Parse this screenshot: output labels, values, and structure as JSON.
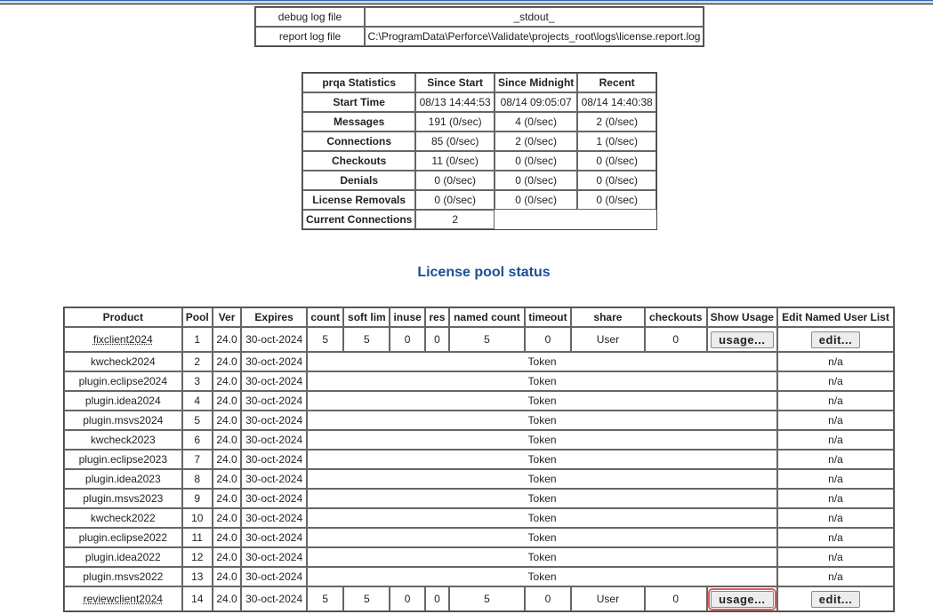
{
  "logs": [
    {
      "label": "debug log file",
      "value": "_stdout_"
    },
    {
      "label": "report log file",
      "value": "C:\\ProgramData\\Perforce\\Validate\\projects_root\\logs\\license.report.log"
    }
  ],
  "stats": {
    "headers": [
      "prqa Statistics",
      "Since Start",
      "Since Midnight",
      "Recent"
    ],
    "rows": [
      {
        "label": "Start Time",
        "values": [
          "08/13 14:44:53",
          "08/14 09:05:07",
          "08/14 14:40:38"
        ]
      },
      {
        "label": "Messages",
        "values": [
          "191 (0/sec)",
          "4 (0/sec)",
          "2 (0/sec)"
        ]
      },
      {
        "label": "Connections",
        "values": [
          "85 (0/sec)",
          "2 (0/sec)",
          "1 (0/sec)"
        ]
      },
      {
        "label": "Checkouts",
        "values": [
          "11 (0/sec)",
          "0 (0/sec)",
          "0 (0/sec)"
        ]
      },
      {
        "label": "Denials",
        "values": [
          "0 (0/sec)",
          "0 (0/sec)",
          "0 (0/sec)"
        ]
      },
      {
        "label": "License Removals",
        "values": [
          "0 (0/sec)",
          "0 (0/sec)",
          "0 (0/sec)"
        ]
      }
    ],
    "current_label": "Current Connections",
    "current_value": "2"
  },
  "pool_title": "License pool status",
  "pool": {
    "headers": [
      "Product",
      "Pool",
      "Ver",
      "Expires",
      "count",
      "soft lim",
      "inuse",
      "res",
      "named count",
      "timeout",
      "share",
      "checkouts",
      "Show Usage",
      "Edit Named User List"
    ],
    "rows": [
      {
        "product": "fixclient2024",
        "pool": "1",
        "ver": "24.0",
        "expires": "30-oct-2024",
        "full": true,
        "count": "5",
        "soft": "5",
        "inuse": "0",
        "res": "0",
        "named": "5",
        "timeout": "0",
        "share": "User",
        "checkouts": "0",
        "usage": "usage...",
        "edit": "edit..."
      },
      {
        "product": "kwcheck2024",
        "pool": "2",
        "ver": "24.0",
        "expires": "30-oct-2024",
        "token": "Token",
        "na": "n/a"
      },
      {
        "product": "plugin.eclipse2024",
        "pool": "3",
        "ver": "24.0",
        "expires": "30-oct-2024",
        "token": "Token",
        "na": "n/a"
      },
      {
        "product": "plugin.idea2024",
        "pool": "4",
        "ver": "24.0",
        "expires": "30-oct-2024",
        "token": "Token",
        "na": "n/a"
      },
      {
        "product": "plugin.msvs2024",
        "pool": "5",
        "ver": "24.0",
        "expires": "30-oct-2024",
        "token": "Token",
        "na": "n/a"
      },
      {
        "product": "kwcheck2023",
        "pool": "6",
        "ver": "24.0",
        "expires": "30-oct-2024",
        "token": "Token",
        "na": "n/a"
      },
      {
        "product": "plugin.eclipse2023",
        "pool": "7",
        "ver": "24.0",
        "expires": "30-oct-2024",
        "token": "Token",
        "na": "n/a"
      },
      {
        "product": "plugin.idea2023",
        "pool": "8",
        "ver": "24.0",
        "expires": "30-oct-2024",
        "token": "Token",
        "na": "n/a"
      },
      {
        "product": "plugin.msvs2023",
        "pool": "9",
        "ver": "24.0",
        "expires": "30-oct-2024",
        "token": "Token",
        "na": "n/a"
      },
      {
        "product": "kwcheck2022",
        "pool": "10",
        "ver": "24.0",
        "expires": "30-oct-2024",
        "token": "Token",
        "na": "n/a"
      },
      {
        "product": "plugin.eclipse2022",
        "pool": "11",
        "ver": "24.0",
        "expires": "30-oct-2024",
        "token": "Token",
        "na": "n/a"
      },
      {
        "product": "plugin.idea2022",
        "pool": "12",
        "ver": "24.0",
        "expires": "30-oct-2024",
        "token": "Token",
        "na": "n/a"
      },
      {
        "product": "plugin.msvs2022",
        "pool": "13",
        "ver": "24.0",
        "expires": "30-oct-2024",
        "token": "Token",
        "na": "n/a"
      },
      {
        "product": "reviewclient2024",
        "pool": "14",
        "ver": "24.0",
        "expires": "30-oct-2024",
        "full": true,
        "focused": true,
        "count": "5",
        "soft": "5",
        "inuse": "0",
        "res": "0",
        "named": "5",
        "timeout": "0",
        "share": "User",
        "checkouts": "0",
        "usage": "usage...",
        "edit": "edit..."
      }
    ]
  },
  "colors": {
    "title": "#1a4f94",
    "focus_outline": "#e05a5a"
  }
}
